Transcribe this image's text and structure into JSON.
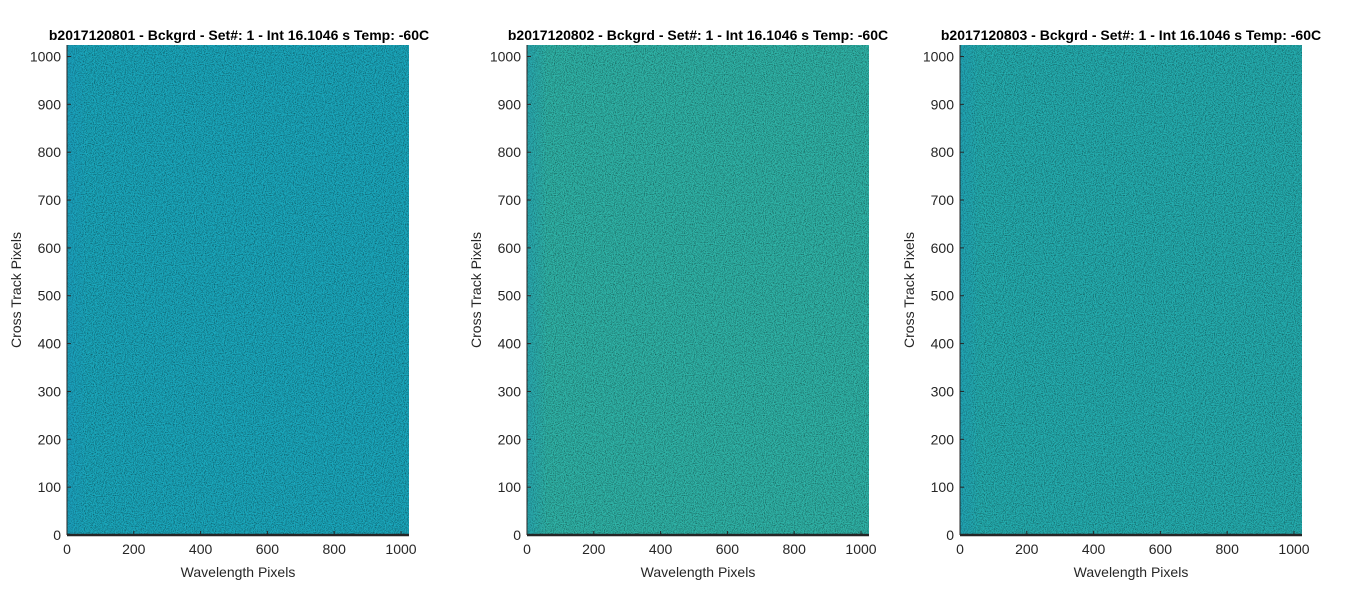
{
  "chart_data": [
    {
      "type": "heatmap",
      "title": "b2017120801 - Bckgrd - Set#: 1 - Int 16.1046 s Temp: -60C",
      "xlabel": "Wavelength Pixels",
      "ylabel": "Cross Track Pixels",
      "xlim": [
        0,
        1024
      ],
      "ylim": [
        0,
        1024
      ],
      "x_ticks": [
        0,
        200,
        400,
        600,
        800,
        1000
      ],
      "y_ticks": [
        0,
        100,
        200,
        300,
        400,
        500,
        600,
        700,
        800,
        900,
        1000
      ],
      "x_tick_labels": [
        "0",
        "200",
        "400",
        "600",
        "800",
        "1000"
      ],
      "y_tick_labels": [
        "0",
        "100",
        "200",
        "300",
        "400",
        "500",
        "600",
        "700",
        "800",
        "900",
        "1000"
      ],
      "base_color": "#1aa8bd",
      "speckle_color": "#3dbb9c"
    },
    {
      "type": "heatmap",
      "title": "b2017120802 - Bckgrd - Set#: 1 - Int 16.1046 s Temp: -60C",
      "xlabel": "Wavelength Pixels",
      "ylabel": "Cross Track Pixels",
      "xlim": [
        0,
        1024
      ],
      "ylim": [
        0,
        1024
      ],
      "x_ticks": [
        0,
        200,
        400,
        600,
        800,
        1000
      ],
      "y_ticks": [
        0,
        100,
        200,
        300,
        400,
        500,
        600,
        700,
        800,
        900,
        1000
      ],
      "x_tick_labels": [
        "0",
        "200",
        "400",
        "600",
        "800",
        "1000"
      ],
      "y_tick_labels": [
        "0",
        "100",
        "200",
        "300",
        "400",
        "500",
        "600",
        "700",
        "800",
        "900",
        "1000"
      ],
      "base_color": "#2fb4a8",
      "speckle_color": "#6cc383"
    },
    {
      "type": "heatmap",
      "title": "b2017120803 - Bckgrd - Set#: 1 - Int 16.1046 s Temp: -60C",
      "xlabel": "Wavelength Pixels",
      "ylabel": "Cross Track Pixels",
      "xlim": [
        0,
        1024
      ],
      "ylim": [
        0,
        1024
      ],
      "x_ticks": [
        0,
        200,
        400,
        600,
        800,
        1000
      ],
      "y_ticks": [
        0,
        100,
        200,
        300,
        400,
        500,
        600,
        700,
        800,
        900,
        1000
      ],
      "x_tick_labels": [
        "0",
        "200",
        "400",
        "600",
        "800",
        "1000"
      ],
      "y_tick_labels": [
        "0",
        "100",
        "200",
        "300",
        "400",
        "500",
        "600",
        "700",
        "800",
        "900",
        "1000"
      ],
      "base_color": "#24aeb0",
      "speckle_color": "#55bf8e"
    }
  ]
}
